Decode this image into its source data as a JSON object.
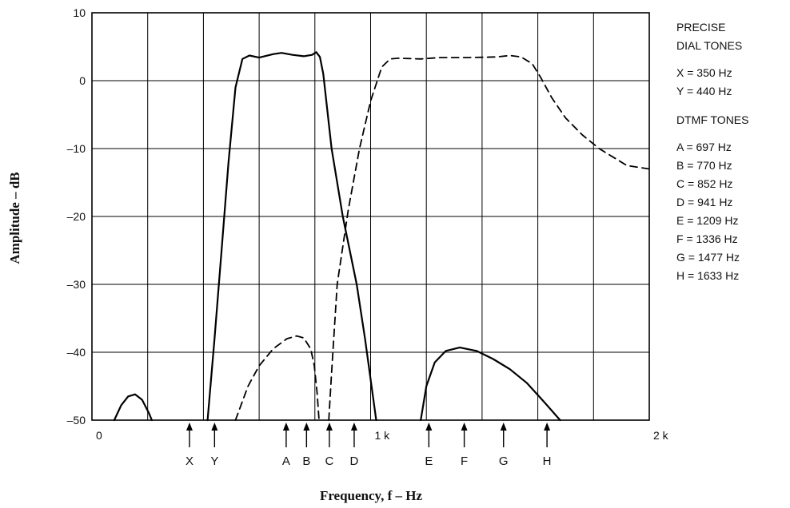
{
  "chart_data": {
    "type": "line",
    "xlabel": "Frequency, f – Hz",
    "ylabel": "Amplitude – dB",
    "xlim": [
      0,
      2000
    ],
    "ylim": [
      -50,
      10
    ],
    "x_tick_values": [
      0,
      1000,
      2000
    ],
    "x_tick_labels": [
      "0",
      "1 k",
      "2 k"
    ],
    "y_ticks": [
      10,
      0,
      -10,
      -20,
      -30,
      -40,
      -50
    ],
    "y_tick_labels": [
      "10",
      "0",
      "–10",
      "–20",
      "–30",
      "–40",
      "–50"
    ],
    "x_gridlines": [
      0,
      200,
      400,
      600,
      800,
      1000,
      1200,
      1400,
      1600,
      1800,
      2000
    ],
    "grid": true,
    "series": [
      {
        "style": "solid",
        "segments": [
          [
            [
              80,
              -50
            ],
            [
              105,
              -47.8
            ],
            [
              130,
              -46.5
            ],
            [
              155,
              -46.2
            ],
            [
              180,
              -47
            ],
            [
              205,
              -49
            ],
            [
              215,
              -50
            ]
          ],
          [
            [
              415,
              -50
            ],
            [
              440,
              -38
            ],
            [
              465,
              -25
            ],
            [
              490,
              -12
            ],
            [
              515,
              -1
            ],
            [
              540,
              3.2
            ],
            [
              565,
              3.7
            ],
            [
              600,
              3.4
            ],
            [
              650,
              3.9
            ],
            [
              680,
              4.1
            ],
            [
              720,
              3.8
            ],
            [
              760,
              3.6
            ],
            [
              790,
              3.8
            ],
            [
              805,
              4.2
            ],
            [
              818,
              3.5
            ],
            [
              830,
              1
            ],
            [
              860,
              -10
            ],
            [
              900,
              -20
            ],
            [
              950,
              -30
            ],
            [
              980,
              -38
            ],
            [
              1010,
              -47
            ],
            [
              1020,
              -50
            ]
          ],
          [
            [
              1180,
              -50
            ],
            [
              1200,
              -45
            ],
            [
              1230,
              -41.5
            ],
            [
              1270,
              -39.8
            ],
            [
              1320,
              -39.3
            ],
            [
              1380,
              -39.8
            ],
            [
              1440,
              -41
            ],
            [
              1500,
              -42.5
            ],
            [
              1560,
              -44.5
            ],
            [
              1620,
              -47.2
            ],
            [
              1680,
              -50
            ]
          ]
        ]
      },
      {
        "style": "dashed",
        "segments": [
          [
            [
              515,
              -50
            ],
            [
              560,
              -45
            ],
            [
              600,
              -42
            ],
            [
              650,
              -39.5
            ],
            [
              700,
              -38
            ],
            [
              735,
              -37.6
            ],
            [
              760,
              -37.9
            ],
            [
              785,
              -39.5
            ],
            [
              798,
              -42
            ],
            [
              808,
              -46
            ],
            [
              815,
              -50
            ]
          ],
          [
            [
              850,
              -50
            ],
            [
              860,
              -43
            ],
            [
              880,
              -30
            ],
            [
              920,
              -19
            ],
            [
              960,
              -10
            ],
            [
              1000,
              -3
            ],
            [
              1040,
              2
            ],
            [
              1070,
              3.2
            ],
            [
              1100,
              3.3
            ],
            [
              1180,
              3.2
            ],
            [
              1250,
              3.4
            ],
            [
              1350,
              3.4
            ],
            [
              1450,
              3.5
            ],
            [
              1500,
              3.7
            ],
            [
              1540,
              3.5
            ],
            [
              1580,
              2.5
            ],
            [
              1610,
              0.5
            ],
            [
              1650,
              -2.5
            ],
            [
              1700,
              -5.5
            ],
            [
              1760,
              -8
            ],
            [
              1820,
              -10
            ],
            [
              1880,
              -11.5
            ],
            [
              1920,
              -12.5
            ],
            [
              2000,
              -13
            ]
          ]
        ]
      }
    ],
    "markers": [
      {
        "label": "X",
        "freq": 350
      },
      {
        "label": "Y",
        "freq": 440
      },
      {
        "label": "A",
        "freq": 697
      },
      {
        "label": "B",
        "freq": 770
      },
      {
        "label": "C",
        "freq": 852
      },
      {
        "label": "D",
        "freq": 941
      },
      {
        "label": "E",
        "freq": 1209
      },
      {
        "label": "F",
        "freq": 1336
      },
      {
        "label": "G",
        "freq": 1477
      },
      {
        "label": "H",
        "freq": 1633
      }
    ],
    "legend": {
      "placement": "right",
      "dial_heading": [
        "PRECISE",
        "DIAL TONES"
      ],
      "dial_tones": [
        "X = 350 Hz",
        "Y = 440 Hz"
      ],
      "dtmf_heading": "DTMF TONES",
      "dtmf_tones": [
        "A = 697 Hz",
        "B = 770 Hz",
        "C = 852 Hz",
        "D = 941 Hz",
        "E = 1209 Hz",
        "F = 1336 Hz",
        "G = 1477 Hz",
        "H = 1633 Hz"
      ]
    }
  }
}
